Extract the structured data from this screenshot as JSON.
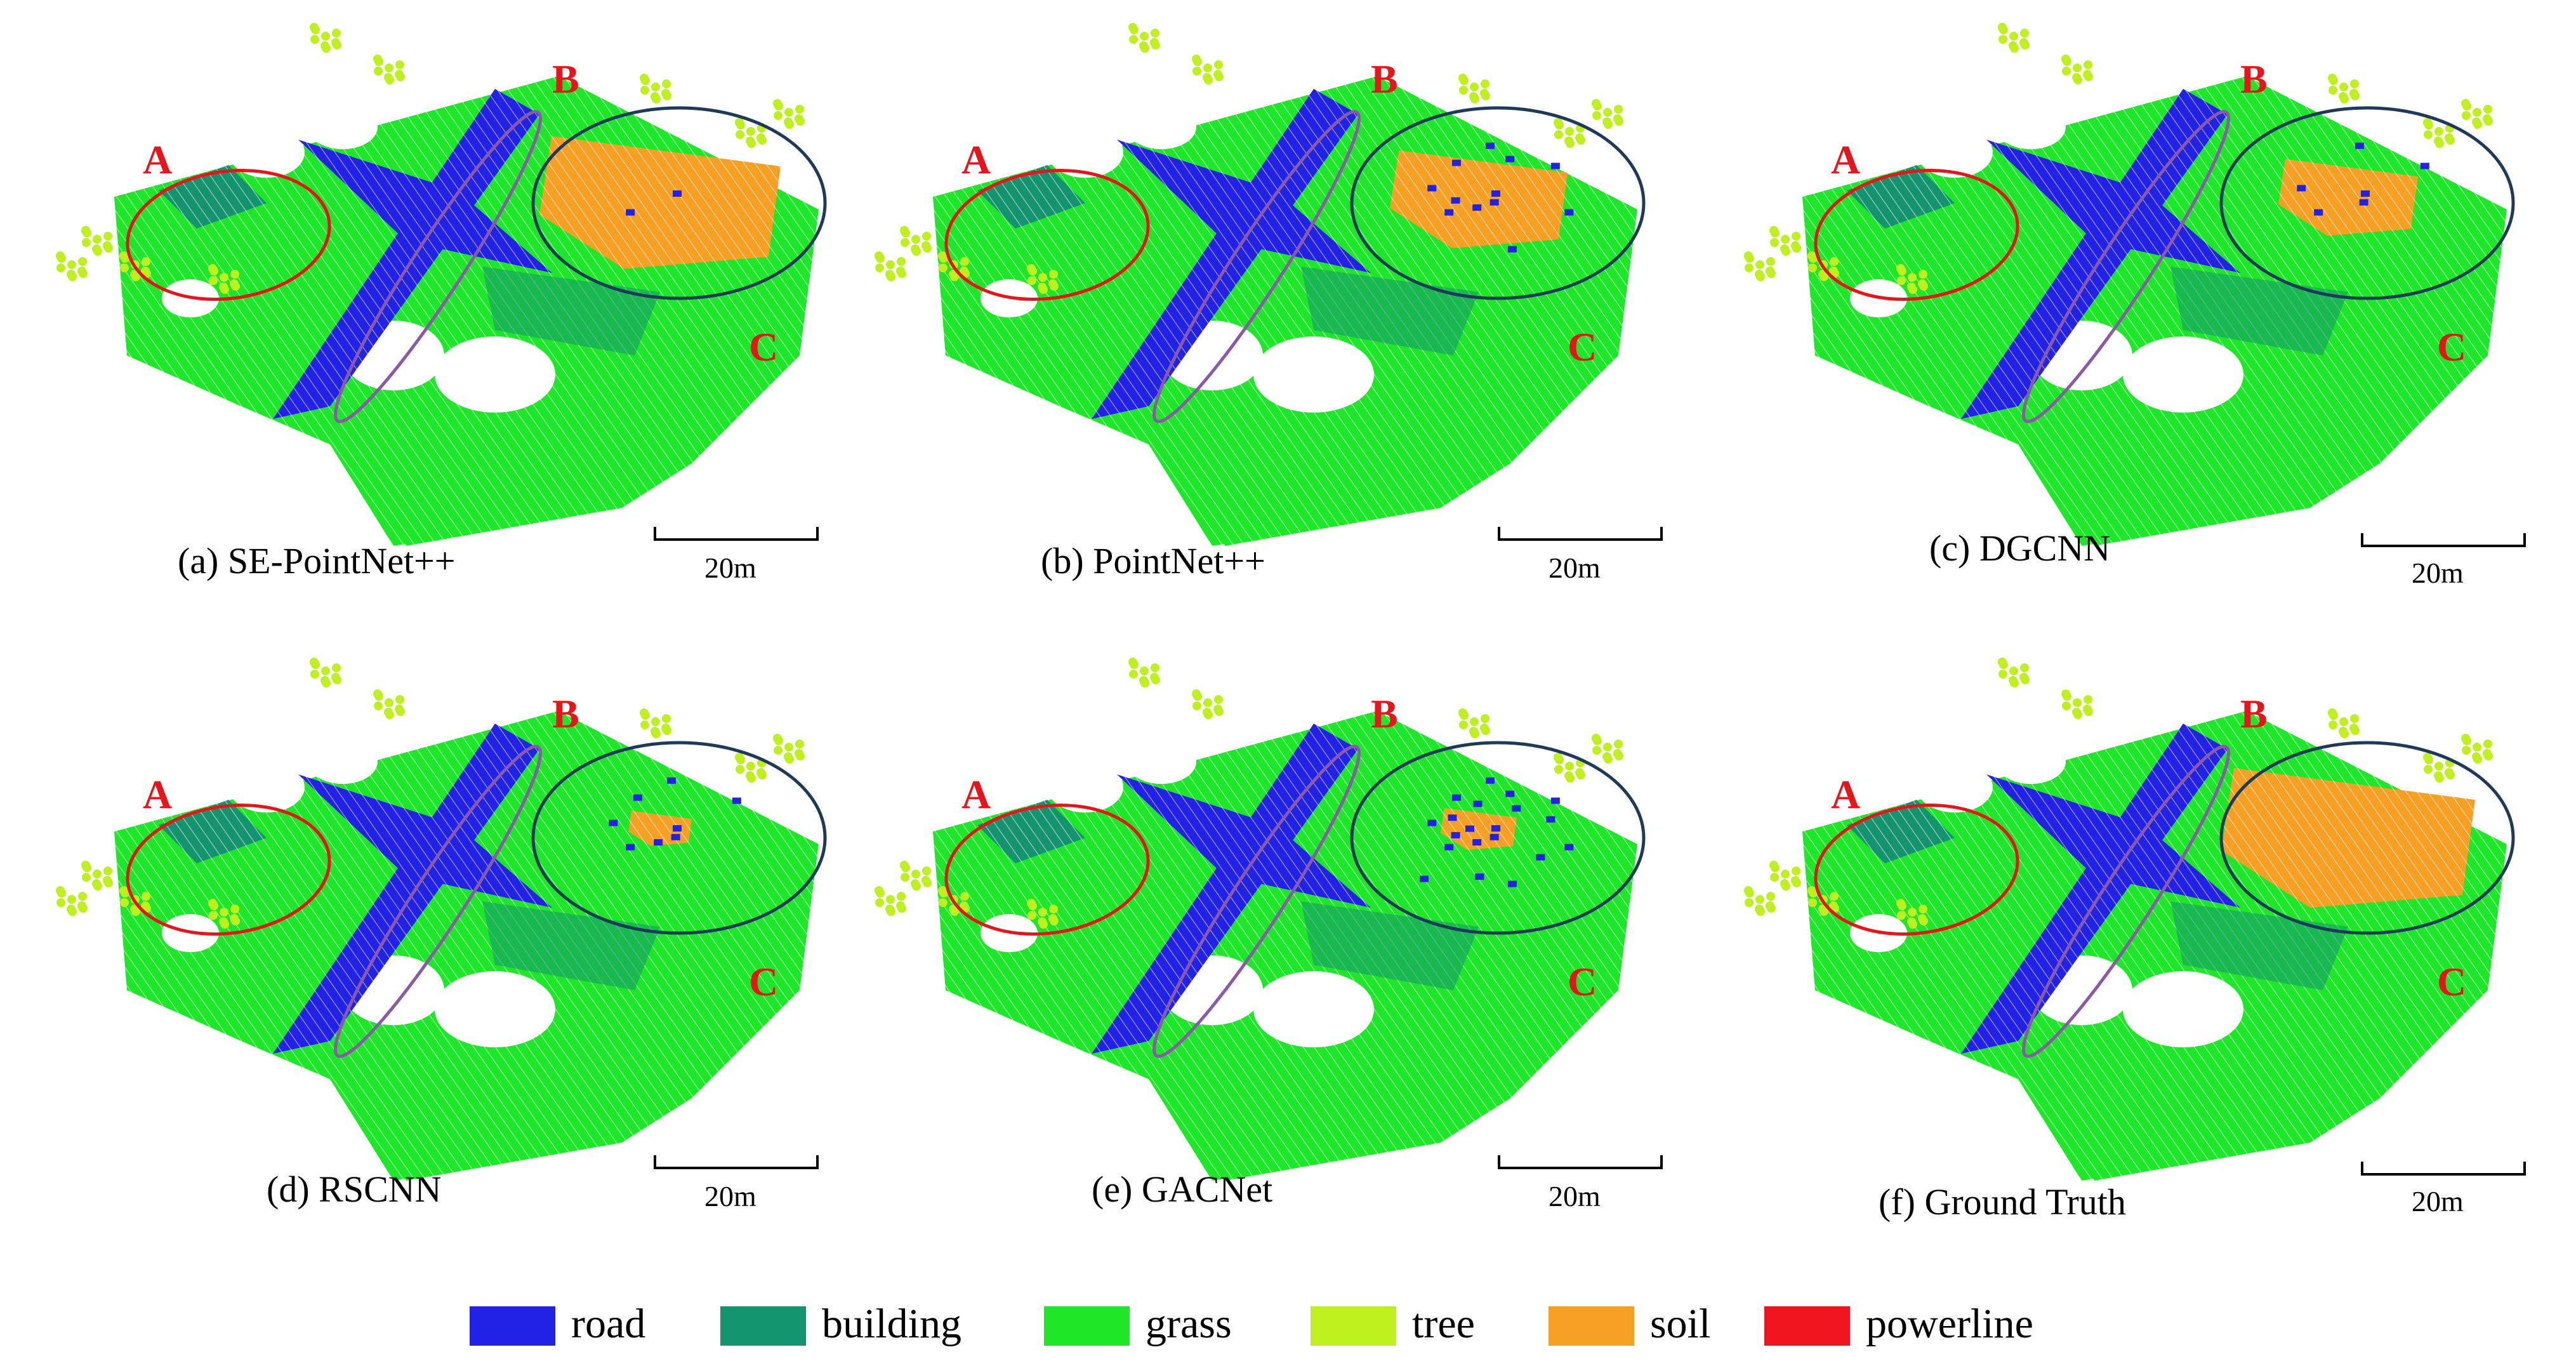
{
  "colors": {
    "road": "#2222e6",
    "building": "#14946e",
    "grass": "#1ee628",
    "tree": "#bef01e",
    "soil": "#f5a023",
    "powerline": "#f0141e",
    "region_a": "#e8141a",
    "region_b": "#8a5aa8",
    "region_c": "#1e3a5a"
  },
  "region_labels": [
    "A",
    "B",
    "C"
  ],
  "scale_bar_label": "20m",
  "panels": [
    {
      "caption": "(a) SE-PointNet++",
      "soil_fraction": 0.95,
      "road_in_soil": 0.05
    },
    {
      "caption": "(b) PointNet++",
      "soil_fraction": 0.7,
      "road_in_soil": 0.3
    },
    {
      "caption": "(c) DGCNN",
      "soil_fraction": 0.55,
      "road_in_soil": 0.15
    },
    {
      "caption": "(d) RSCNN",
      "soil_fraction": 0.25,
      "road_in_soil": 0.2
    },
    {
      "caption": "(e) GACNet",
      "soil_fraction": 0.3,
      "road_in_soil": 0.5
    },
    {
      "caption": "(f) Ground Truth",
      "soil_fraction": 1.0,
      "road_in_soil": 0.0
    }
  ],
  "legend": [
    {
      "label": "road",
      "color_key": "road"
    },
    {
      "label": "building",
      "color_key": "building"
    },
    {
      "label": "grass",
      "color_key": "grass"
    },
    {
      "label": "tree",
      "color_key": "tree"
    },
    {
      "label": "soil",
      "color_key": "soil"
    },
    {
      "label": "powerline",
      "color_key": "powerline"
    }
  ]
}
